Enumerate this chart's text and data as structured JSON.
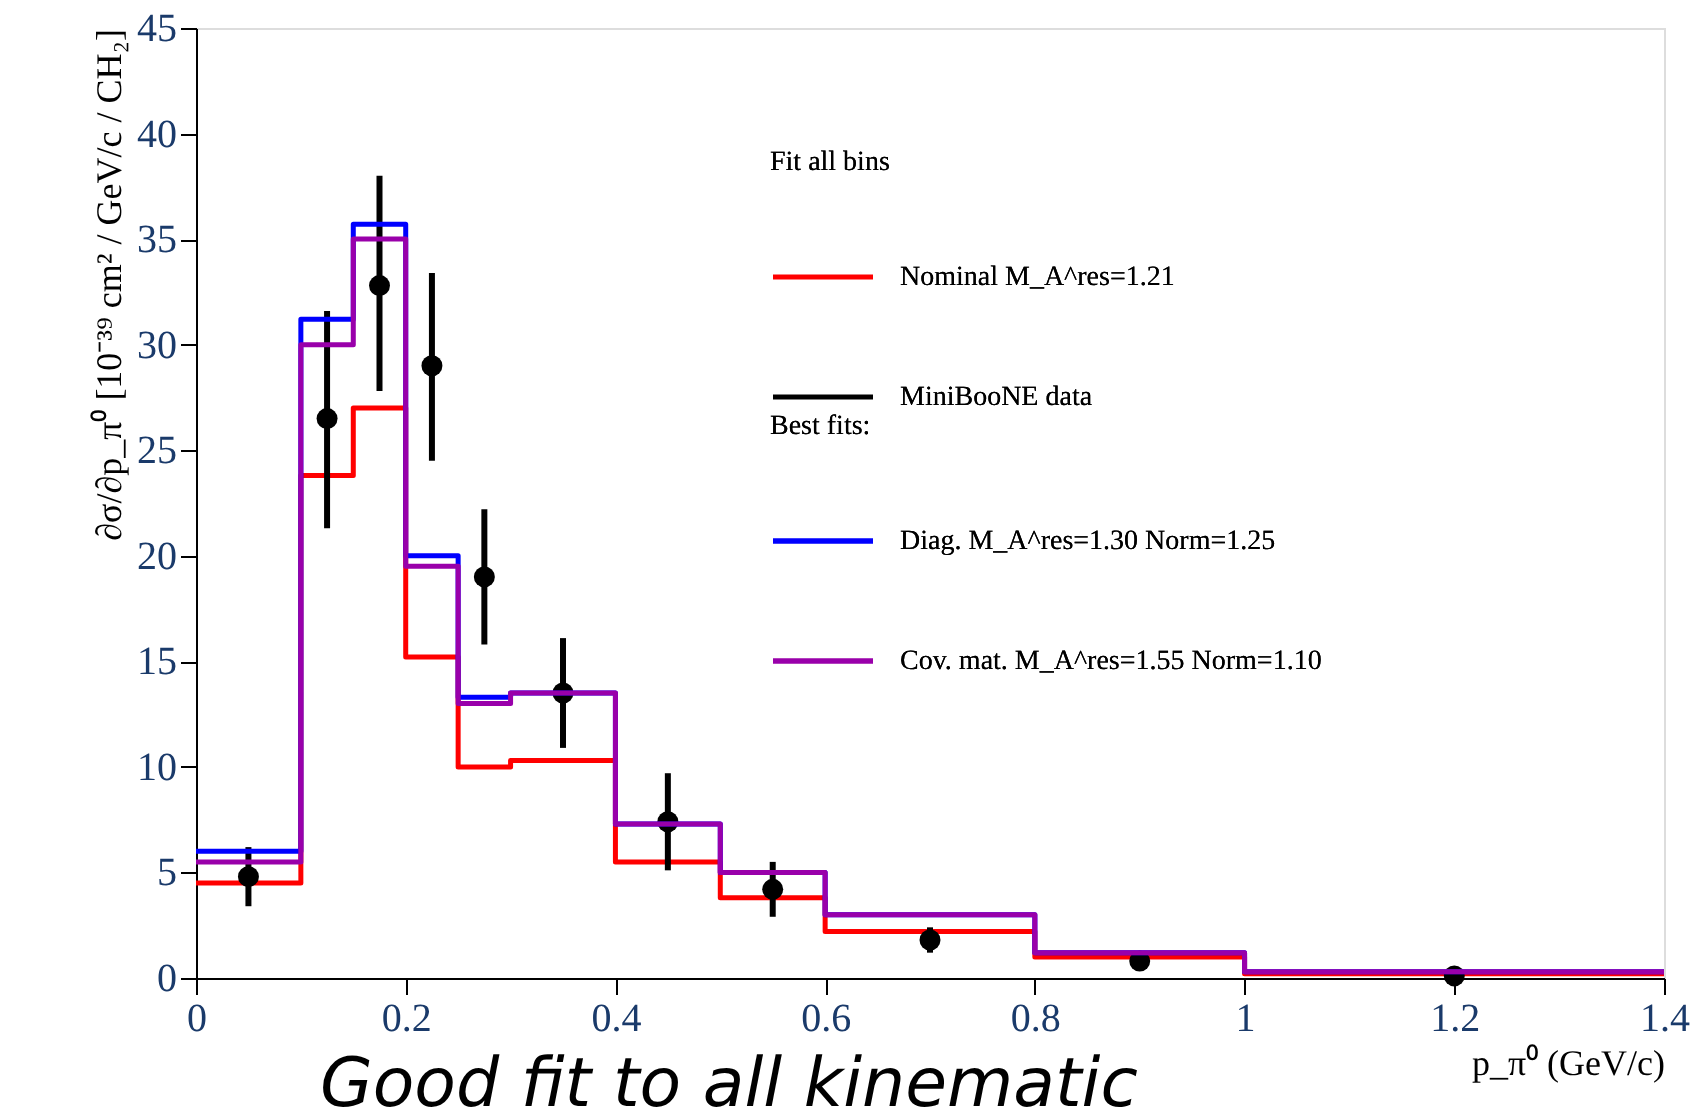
{
  "chart_data": {
    "type": "histogram",
    "xlabel": "p_π⁰ (GeV/c)",
    "ylabel": "∂σ/∂p_π⁰ [10⁻³⁹ cm² / GeV/c / CH₂]",
    "legend_title": "Fit all bins",
    "annotations": [
      "Best fits:",
      "Good fit to all kinematic"
    ],
    "bins": [
      0,
      0.1,
      0.15,
      0.2,
      0.25,
      0.3,
      0.4,
      0.5,
      0.6,
      0.8,
      1.0,
      1.4
    ],
    "series": [
      {
        "name": "Nominal M_A^res=1.21",
        "color": "#ff0000",
        "values": [
          4.5,
          23.8,
          27,
          15.2,
          10,
          10.3,
          5.5,
          3.8,
          2.2,
          1.0,
          0.2
        ]
      },
      {
        "name": "MiniBooNE data",
        "type": "scatter",
        "color": "#000000",
        "x": [
          0.05,
          0.125,
          0.175,
          0.225,
          0.275,
          0.35,
          0.45,
          0.55,
          0.7,
          0.9,
          1.2
        ],
        "values": [
          4.8,
          26.5,
          32.8,
          29,
          19,
          13.5,
          7.4,
          4.2,
          1.8,
          0.8,
          0.1
        ],
        "errors": [
          [
            3.4,
            6.2
          ],
          [
            21.3,
            31.6
          ],
          [
            27.8,
            38
          ],
          [
            24.5,
            33.4
          ],
          [
            15.8,
            22.2
          ],
          [
            10.9,
            16.1
          ],
          [
            5.1,
            9.7
          ],
          [
            2.9,
            5.5
          ],
          [
            1.2,
            2.4
          ],
          [
            0.4,
            1.2
          ],
          null
        ]
      },
      {
        "name": "Diag. M_A^res=1.30 Norm=1.25",
        "color": "#0000ff",
        "values": [
          6.0,
          31.2,
          35.7,
          20.0,
          13.3,
          13.5,
          7.3,
          5.0,
          3.0,
          1.2,
          0.3
        ]
      },
      {
        "name": "Cov. mat. M_A^res=1.55 Norm=1.10",
        "color": "#9900aa",
        "values": [
          5.5,
          30.0,
          35.0,
          19.5,
          13.0,
          13.5,
          7.3,
          5.0,
          3.0,
          1.2,
          0.3
        ]
      }
    ],
    "xlim": [
      0,
      1.4
    ],
    "xticks": [
      0,
      0.2,
      0.4,
      0.6,
      0.8,
      1,
      1.2,
      1.4
    ],
    "ylim": [
      0,
      45
    ],
    "yticks": [
      0,
      5,
      10,
      15,
      20,
      25,
      30,
      35,
      40,
      45
    ],
    "marker": "circle",
    "grid": false,
    "legend": "top right"
  }
}
